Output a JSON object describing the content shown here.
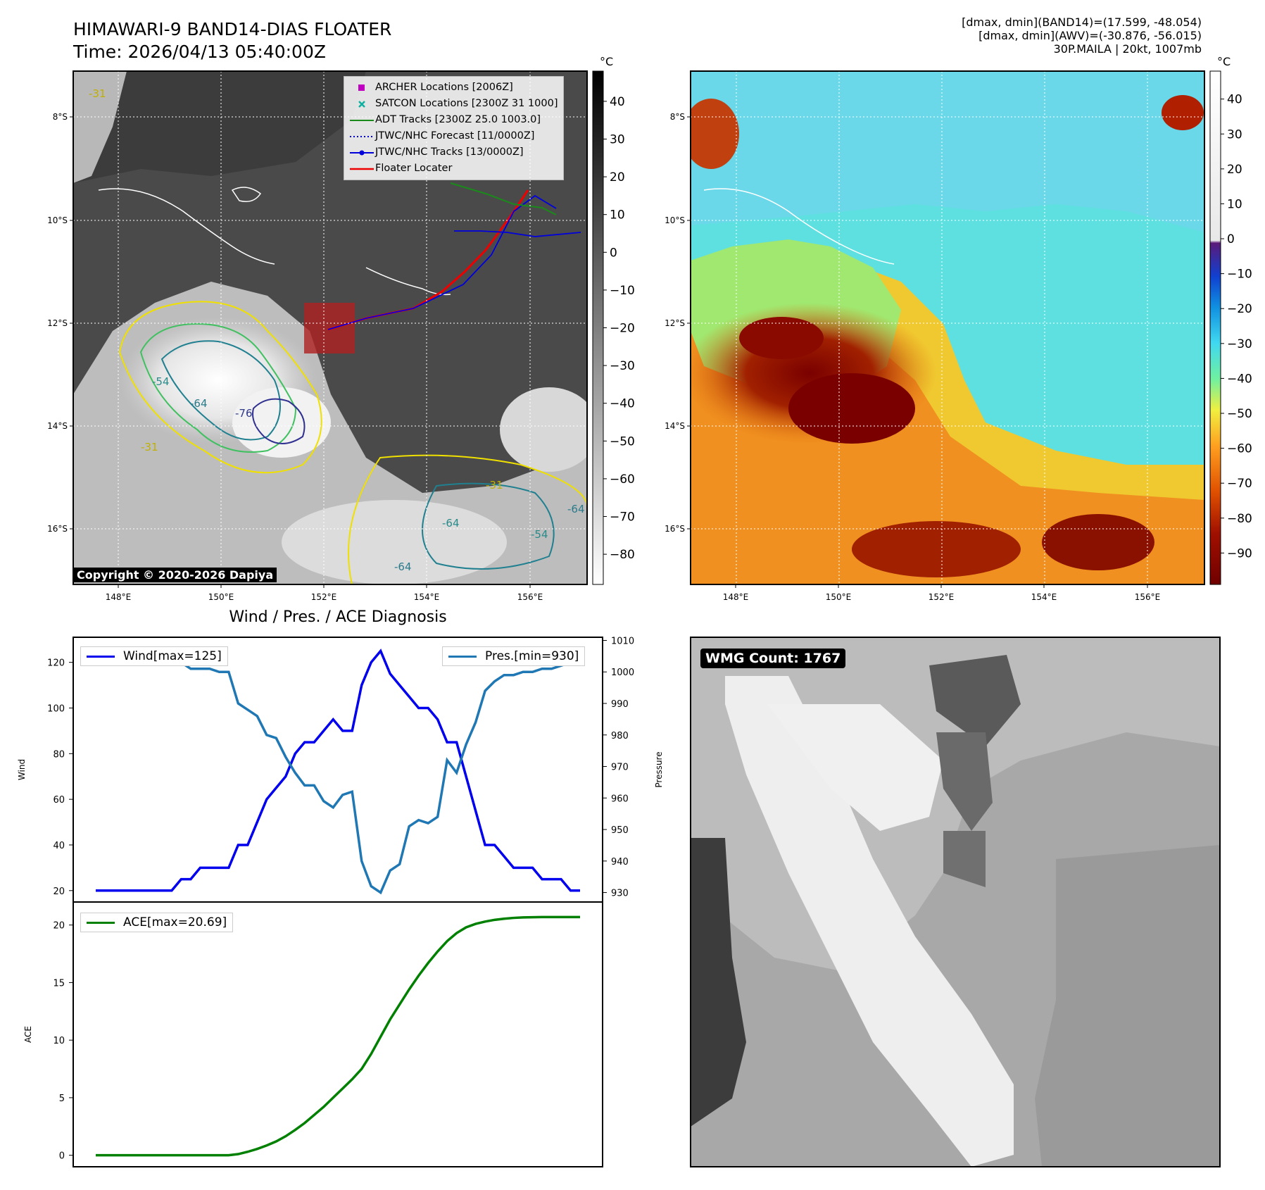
{
  "header": {
    "title_line1": "HIMAWARI-9 BAND14-DIAS FLOATER",
    "title_line2": "Time: 2026/04/13 05:40:00Z",
    "stats_line1": "[dmax, dmin](BAND14)=(17.599, -48.054)",
    "stats_line2": "[dmax, dmin](AWV)=(-30.876, -56.015)",
    "stats_line3": "30P.MAILA | 20kt, 1007mb"
  },
  "map_axes": {
    "lat_labels": [
      "8°S",
      "10°S",
      "12°S",
      "14°S",
      "16°S"
    ],
    "lon_labels": [
      "148°E",
      "150°E",
      "152°E",
      "154°E",
      "156°E"
    ]
  },
  "ir_panel": {
    "colorbar_unit": "°C",
    "colorbar_ticks": [
      "40",
      "30",
      "20",
      "10",
      "0",
      "−10",
      "−20",
      "−30",
      "−40",
      "−50",
      "−60",
      "−70",
      "−80"
    ],
    "contour_labels": [
      "-31",
      "-54",
      "-64",
      "-76",
      "-31",
      "-31",
      "-64",
      "-54",
      "-64",
      "-64"
    ],
    "copyright": "Copyright © 2020-2026 Dapiya",
    "legend": [
      {
        "label": "ARCHER Locations [2006Z]",
        "color": "#c000c0",
        "marker": "square"
      },
      {
        "label": "SATCON Locations [2300Z 31 1000]",
        "color": "#10b0a0",
        "marker": "x"
      },
      {
        "label": "ADT Tracks [2300Z 25.0 1003.0]",
        "color": "#1a8a1a",
        "marker": "line"
      },
      {
        "label": "JTWC/NHC Forecast [11/0000Z]",
        "color": "#0000dd",
        "marker": "dotted"
      },
      {
        "label": "JTWC/NHC Tracks [13/0000Z]",
        "color": "#0000dd",
        "marker": "line-dot"
      },
      {
        "label": "Floater Locater",
        "color": "#ee0000",
        "marker": "line"
      }
    ]
  },
  "wv_panel": {
    "colorbar_unit": "°C",
    "colorbar_ticks": [
      "40",
      "30",
      "20",
      "10",
      "0",
      "−10",
      "−20",
      "−30",
      "−40",
      "−50",
      "−60",
      "−70",
      "−80",
      "−90"
    ]
  },
  "diagnosis": {
    "title": "Wind / Pres. / ACE Diagnosis",
    "wind_axis_label": "Wind",
    "pressure_axis_label": "Pressure",
    "ace_axis_label": "ACE",
    "wind_legend": "Wind[max=125]",
    "pressure_legend": "Pres.[min=930]",
    "ace_legend": "ACE[max=20.69]",
    "wind_ticks": [
      "20",
      "40",
      "60",
      "80",
      "100",
      "120"
    ],
    "pressure_ticks": [
      "930",
      "940",
      "950",
      "960",
      "970",
      "980",
      "990",
      "1000",
      "1010"
    ],
    "ace_ticks": [
      "0",
      "5",
      "10",
      "15",
      "20"
    ]
  },
  "wmg_panel": {
    "count_label": "WMG Count: 1767"
  },
  "chart_data": [
    {
      "type": "line",
      "title": "Wind / Pres. / ACE Diagnosis",
      "ylabel": "Wind",
      "y2label": "Pressure",
      "ylim": [
        15,
        131
      ],
      "y2lim": [
        927,
        1011
      ],
      "series": [
        {
          "name": "Wind[max=125]",
          "color": "#0000ee",
          "values": [
            20,
            20,
            20,
            20,
            20,
            20,
            20,
            20,
            20,
            25,
            25,
            30,
            30,
            30,
            30,
            40,
            40,
            50,
            60,
            65,
            70,
            80,
            85,
            85,
            90,
            95,
            90,
            90,
            110,
            120,
            125,
            115,
            110,
            105,
            100,
            100,
            95,
            85,
            85,
            70,
            55,
            40,
            40,
            35,
            30,
            30,
            30,
            25,
            25,
            25,
            20,
            20
          ]
        },
        {
          "name": "Pres.[min=930]",
          "color": "#1f77b4",
          "axis": "right",
          "values": [
            1007,
            1007,
            1007,
            1007,
            1007,
            1005,
            1005,
            1003,
            1003,
            1003,
            1001,
            1001,
            1001,
            1000,
            1000,
            990,
            988,
            986,
            980,
            979,
            973,
            968,
            964,
            964,
            959,
            957,
            961,
            962,
            940,
            932,
            930,
            937,
            939,
            951,
            953,
            952,
            954,
            972,
            968,
            977,
            984,
            994,
            997,
            999,
            999,
            1000,
            1000,
            1001,
            1001,
            1002,
            1003,
            1004
          ]
        }
      ]
    },
    {
      "type": "line",
      "ylabel": "ACE",
      "ylim": [
        -1,
        22
      ],
      "series": [
        {
          "name": "ACE[max=20.69]",
          "color": "#008000",
          "values": [
            0,
            0,
            0,
            0,
            0,
            0,
            0,
            0,
            0,
            0,
            0,
            0,
            0,
            0,
            0,
            0.1,
            0.3,
            0.55,
            0.85,
            1.2,
            1.65,
            2.2,
            2.8,
            3.5,
            4.2,
            5,
            5.8,
            6.6,
            7.5,
            8.8,
            10.3,
            11.8,
            13.1,
            14.4,
            15.6,
            16.7,
            17.7,
            18.6,
            19.3,
            19.8,
            20.1,
            20.3,
            20.45,
            20.55,
            20.62,
            20.66,
            20.68,
            20.69,
            20.69,
            20.69,
            20.69,
            20.69
          ]
        }
      ]
    }
  ]
}
